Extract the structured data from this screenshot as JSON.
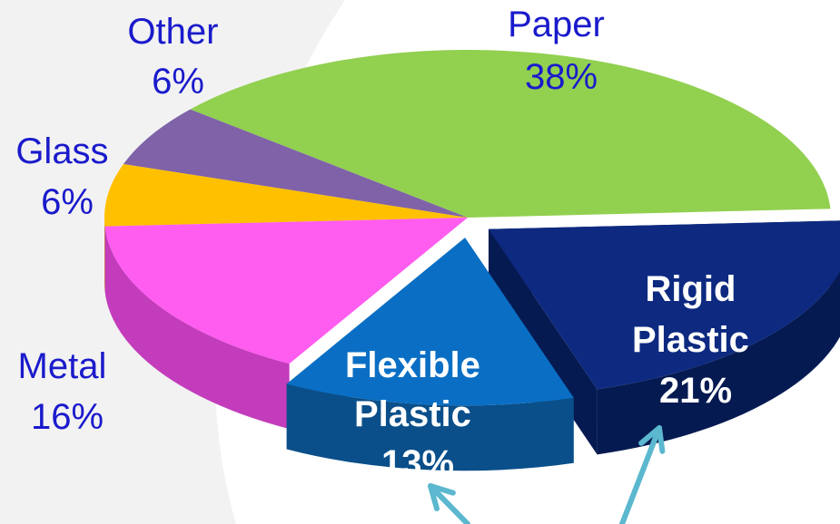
{
  "chart_data": {
    "type": "pie",
    "title": "",
    "slices": [
      {
        "name": "Paper",
        "value": 38,
        "label_pct": "38%",
        "color": "#92d050",
        "side": "#6fa83a"
      },
      {
        "name": "Rigid Plastic",
        "value": 21,
        "label_pct": "21%",
        "color": "#0d2a80",
        "side": "#061a52",
        "exploded": true
      },
      {
        "name": "Flexible Plastic",
        "value": 13,
        "label_pct": "13%",
        "color": "#0a6fc4",
        "side": "#0a4f8a",
        "exploded": true
      },
      {
        "name": "Metal",
        "value": 16,
        "label_pct": "16%",
        "color": "#ff5cf0",
        "side": "#c33cbc"
      },
      {
        "name": "Glass",
        "value": 6,
        "label_pct": "6%",
        "color": "#ffc000",
        "side": "#c99200"
      },
      {
        "name": "Other",
        "value": 6,
        "label_pct": "6%",
        "color": "#7f62a8",
        "side": "#5e4684"
      }
    ],
    "legend": "none",
    "annotations": [
      "arrow to Flexible Plastic",
      "arrow to Rigid Plastic"
    ],
    "arrow_color": "#5bb8cf"
  },
  "labels": {
    "paper": [
      "Paper",
      "38%"
    ],
    "rigid": [
      "Rigid",
      "Plastic",
      "21%"
    ],
    "flexible": [
      "Flexible",
      "Plastic",
      "13%"
    ],
    "metal": [
      "Metal",
      "16%"
    ],
    "glass": [
      "Glass",
      "6%"
    ],
    "other": [
      "Other",
      "6%"
    ]
  }
}
